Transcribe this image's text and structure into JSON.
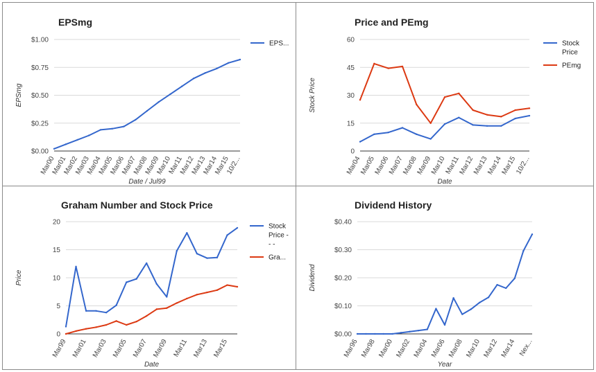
{
  "chart_data": [
    {
      "id": "eps",
      "type": "line",
      "title": "EPSmg",
      "xlabel": "Date / Jul99",
      "ylabel": "EPSmg",
      "ylim": [
        0,
        1
      ],
      "yticks": [
        "$0.00",
        "$0.25",
        "$0.50",
        "$0.75",
        "$1.00"
      ],
      "ytick_values": [
        0,
        0.25,
        0.5,
        0.75,
        1.0
      ],
      "categories": [
        "Mar00",
        "Mar01",
        "Mar02",
        "Mar03",
        "Mar04",
        "Mar05",
        "Mar06",
        "Mar07",
        "Mar08",
        "Mar09",
        "Mar10",
        "Mar11",
        "Mar12",
        "Mar13",
        "Mar14",
        "Mar15",
        "10/2..."
      ],
      "series": [
        {
          "name": "EPS...",
          "color": "#3366cc",
          "values": [
            0.02,
            0.06,
            0.1,
            0.14,
            0.19,
            0.2,
            0.22,
            0.28,
            0.36,
            0.44,
            0.51,
            0.58,
            0.65,
            0.7,
            0.74,
            0.79,
            0.82
          ]
        }
      ],
      "grid": true,
      "legend": "right"
    },
    {
      "id": "price",
      "type": "line",
      "title": "Price and PEmg",
      "xlabel": "Date",
      "ylabel": "Stock Price",
      "ylim": [
        0,
        60
      ],
      "yticks": [
        "0",
        "15",
        "30",
        "45",
        "60"
      ],
      "ytick_values": [
        0,
        15,
        30,
        45,
        60
      ],
      "categories": [
        "Mar04",
        "Mar05",
        "Mar06",
        "Mar07",
        "Mar08",
        "Mar09",
        "Mar10",
        "Mar11",
        "Mar12",
        "Mar13",
        "Mar14",
        "Mar15",
        "10/2..."
      ],
      "series": [
        {
          "name": "Stock Price",
          "color": "#3366cc",
          "values": [
            5,
            9,
            10,
            12.5,
            9,
            6.5,
            14.5,
            18,
            14,
            13.5,
            13.5,
            17.5,
            19
          ]
        },
        {
          "name": "PEmg",
          "color": "#dc3912",
          "values": [
            27.5,
            47,
            44.5,
            45.5,
            25,
            15,
            29,
            31,
            22,
            19.5,
            18.5,
            22,
            23
          ]
        }
      ],
      "grid": true,
      "legend": "right"
    },
    {
      "id": "graham",
      "type": "line",
      "title": "Graham Number and Stock Price",
      "xlabel": "Date",
      "ylabel": "Price",
      "ylim": [
        0,
        20
      ],
      "yticks": [
        "0",
        "5",
        "10",
        "15",
        "20"
      ],
      "ytick_values": [
        0,
        5,
        10,
        15,
        20
      ],
      "categories": [
        "Mar99",
        "Mar00",
        "Mar01",
        "Mar02",
        "Mar03",
        "Mar04",
        "Mar05",
        "Mar06",
        "Mar07",
        "Mar08",
        "Mar09",
        "Mar10",
        "Mar11",
        "Mar12",
        "Mar13",
        "Mar14",
        "Mar15",
        "Mar16"
      ],
      "xtick_labels": [
        "Mar99",
        "Mar01",
        "Mar03",
        "Mar05",
        "Mar07",
        "Mar09",
        "Mar11",
        "Mar13",
        "Mar15"
      ],
      "xtick_indices": [
        0,
        2,
        4,
        6,
        8,
        10,
        12,
        14,
        16
      ],
      "series": [
        {
          "name": "Stock Price - - -",
          "legend_lines": [
            "Stock",
            "Price -",
            "- -"
          ],
          "color": "#3366cc",
          "values": [
            1.3,
            12,
            4.1,
            4.1,
            3.8,
            5.1,
            9.2,
            9.8,
            12.6,
            8.9,
            6.6,
            14.8,
            18,
            14.3,
            13.5,
            13.6,
            17.6,
            18.9
          ]
        },
        {
          "name": "Gra...",
          "color": "#dc3912",
          "values": [
            0,
            0.5,
            0.9,
            1.2,
            1.6,
            2.3,
            1.6,
            2.2,
            3.2,
            4.4,
            4.6,
            5.5,
            6.3,
            7.0,
            7.4,
            7.8,
            8.7,
            8.4
          ]
        }
      ],
      "grid": true,
      "legend": "right"
    },
    {
      "id": "dividend",
      "type": "line",
      "title": "Dividend History",
      "xlabel": "Year",
      "ylabel": "Dividend",
      "ylim": [
        0,
        0.4
      ],
      "yticks": [
        "$0.00",
        "$0.10",
        "$0.20",
        "$0.30",
        "$0.40"
      ],
      "ytick_values": [
        0,
        0.1,
        0.2,
        0.3,
        0.4
      ],
      "categories": [
        "Mar96",
        "Mar97",
        "Mar98",
        "Mar99",
        "Mar00",
        "Mar01",
        "Mar02",
        "Mar03",
        "Mar04",
        "Mar05",
        "Mar06",
        "Mar07",
        "Mar08",
        "Mar09",
        "Mar10",
        "Mar11",
        "Mar12",
        "Mar13",
        "Mar14",
        "Mar15",
        "Nex..."
      ],
      "xtick_labels": [
        "Mar96",
        "Mar98",
        "Mar00",
        "Mar02",
        "Mar04",
        "Mar06",
        "Mar08",
        "Mar10",
        "Mar12",
        "Mar14",
        "Nex..."
      ],
      "xtick_indices": [
        0,
        2,
        4,
        6,
        8,
        10,
        12,
        14,
        16,
        18,
        20
      ],
      "series": [
        {
          "name": "Dividend",
          "color": "#3366cc",
          "values": [
            0,
            0,
            0,
            0,
            0,
            0.004,
            0.008,
            0.012,
            0.016,
            0.09,
            0.032,
            0.128,
            0.07,
            0.088,
            0.112,
            0.13,
            0.175,
            0.163,
            0.198,
            0.296,
            0.355
          ]
        }
      ],
      "grid": true,
      "legend": "none"
    }
  ]
}
